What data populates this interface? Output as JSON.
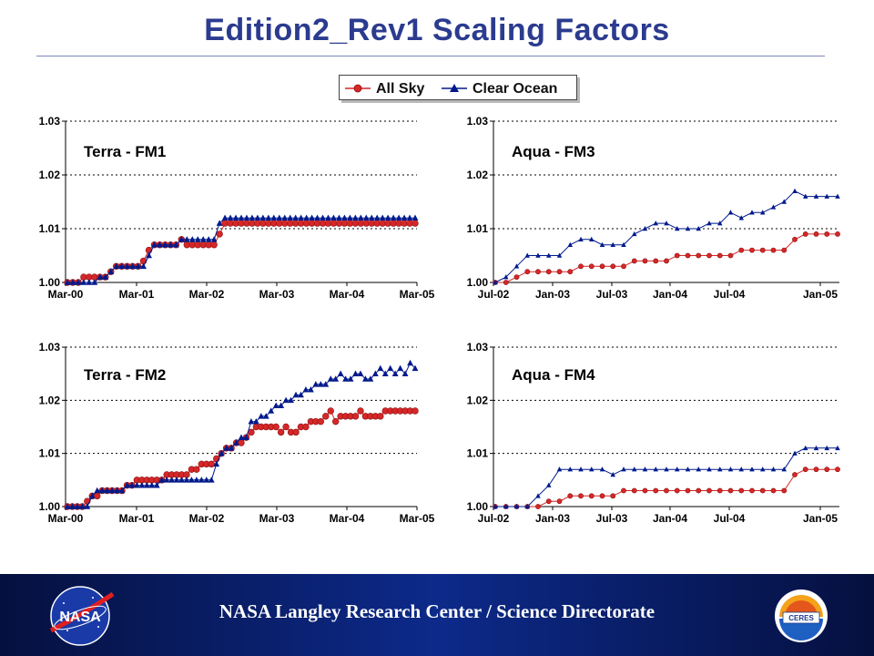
{
  "title": "Edition2_Rev1 Scaling Factors",
  "footer": {
    "text": "NASA Langley Research Center / Science Directorate",
    "nasa_logo_text": "NASA",
    "ceres_logo_text": "CERES"
  },
  "legend": {
    "series": [
      {
        "name": "All Sky",
        "color": "#d62728",
        "marker": "circle"
      },
      {
        "name": "Clear Ocean",
        "color": "#001a8c",
        "marker": "triangle"
      }
    ]
  },
  "chart_data": [
    {
      "type": "line",
      "label": "Terra - FM1",
      "x_labels": [
        "Mar-00",
        "Mar-01",
        "Mar-02",
        "Mar-03",
        "Mar-04",
        "Mar-05"
      ],
      "ylim": [
        1.0,
        1.03
      ],
      "y_ticks": [
        "1.00",
        "1.01",
        "1.02",
        "1.03"
      ],
      "grid": "horizontal dotted",
      "series": [
        {
          "name": "All Sky",
          "values": [
            1.0,
            1.0,
            1.0,
            1.001,
            1.001,
            1.001,
            1.001,
            1.001,
            1.002,
            1.003,
            1.003,
            1.003,
            1.003,
            1.003,
            1.004,
            1.006,
            1.007,
            1.007,
            1.007,
            1.007,
            1.007,
            1.008,
            1.007,
            1.007,
            1.007,
            1.007,
            1.007,
            1.007,
            1.009,
            1.011,
            1.011,
            1.011,
            1.011,
            1.011,
            1.011,
            1.011,
            1.011,
            1.011,
            1.011,
            1.011,
            1.011,
            1.011,
            1.011,
            1.011,
            1.011,
            1.011,
            1.011,
            1.011,
            1.011,
            1.011,
            1.011,
            1.011,
            1.011,
            1.011,
            1.011,
            1.011,
            1.011,
            1.011,
            1.011,
            1.011,
            1.011,
            1.011,
            1.011,
            1.011,
            1.011
          ]
        },
        {
          "name": "Clear Ocean",
          "values": [
            1.0,
            1.0,
            1.0,
            1.0,
            1.0,
            1.0,
            1.001,
            1.001,
            1.002,
            1.003,
            1.003,
            1.003,
            1.003,
            1.003,
            1.003,
            1.005,
            1.007,
            1.007,
            1.007,
            1.007,
            1.007,
            1.008,
            1.008,
            1.008,
            1.008,
            1.008,
            1.008,
            1.008,
            1.011,
            1.012,
            1.012,
            1.012,
            1.012,
            1.012,
            1.012,
            1.012,
            1.012,
            1.012,
            1.012,
            1.012,
            1.012,
            1.012,
            1.012,
            1.012,
            1.012,
            1.012,
            1.012,
            1.012,
            1.012,
            1.012,
            1.012,
            1.012,
            1.012,
            1.012,
            1.012,
            1.012,
            1.012,
            1.012,
            1.012,
            1.012,
            1.012,
            1.012,
            1.012,
            1.012,
            1.012
          ]
        }
      ]
    },
    {
      "type": "line",
      "label": "Aqua - FM3",
      "x_labels": [
        "Jul-02",
        "Jan-03",
        "Jul-03",
        "Jan-04",
        "Jul-04",
        "Jan-05"
      ],
      "ylim": [
        1.0,
        1.03
      ],
      "y_ticks": [
        "1.00",
        "1.01",
        "1.02",
        "1.03"
      ],
      "grid": "horizontal dotted",
      "series": [
        {
          "name": "All Sky",
          "values": [
            1.0,
            1.0,
            1.001,
            1.002,
            1.002,
            1.002,
            1.002,
            1.002,
            1.003,
            1.003,
            1.003,
            1.003,
            1.003,
            1.004,
            1.004,
            1.004,
            1.004,
            1.005,
            1.005,
            1.005,
            1.005,
            1.005,
            1.005,
            1.006,
            1.006,
            1.006,
            1.006,
            1.006,
            1.008,
            1.009,
            1.009,
            1.009,
            1.009
          ]
        },
        {
          "name": "Clear Ocean",
          "values": [
            1.0,
            1.001,
            1.003,
            1.005,
            1.005,
            1.005,
            1.005,
            1.007,
            1.008,
            1.008,
            1.007,
            1.007,
            1.007,
            1.009,
            1.01,
            1.011,
            1.011,
            1.01,
            1.01,
            1.01,
            1.011,
            1.011,
            1.013,
            1.012,
            1.013,
            1.013,
            1.014,
            1.015,
            1.017,
            1.016,
            1.016,
            1.016,
            1.016
          ]
        }
      ]
    },
    {
      "type": "line",
      "label": "Terra - FM2",
      "x_labels": [
        "Mar-00",
        "Mar-01",
        "Mar-02",
        "Mar-03",
        "Mar-04",
        "Mar-05"
      ],
      "ylim": [
        1.0,
        1.03
      ],
      "y_ticks": [
        "1.00",
        "1.01",
        "1.02",
        "1.03"
      ],
      "grid": "horizontal dotted",
      "series": [
        {
          "name": "All Sky",
          "values": [
            1.0,
            1.0,
            1.0,
            1.0,
            1.001,
            1.002,
            1.002,
            1.003,
            1.003,
            1.003,
            1.003,
            1.003,
            1.004,
            1.004,
            1.005,
            1.005,
            1.005,
            1.005,
            1.005,
            1.005,
            1.006,
            1.006,
            1.006,
            1.006,
            1.006,
            1.007,
            1.007,
            1.008,
            1.008,
            1.008,
            1.009,
            1.01,
            1.011,
            1.011,
            1.012,
            1.012,
            1.013,
            1.014,
            1.015,
            1.015,
            1.015,
            1.015,
            1.015,
            1.014,
            1.015,
            1.014,
            1.014,
            1.015,
            1.015,
            1.016,
            1.016,
            1.016,
            1.017,
            1.018,
            1.016,
            1.017,
            1.017,
            1.017,
            1.017,
            1.018,
            1.017,
            1.017,
            1.017,
            1.017,
            1.018,
            1.018,
            1.018,
            1.018,
            1.018,
            1.018,
            1.018
          ]
        },
        {
          "name": "Clear Ocean",
          "values": [
            1.0,
            1.0,
            1.0,
            1.0,
            1.0,
            1.002,
            1.003,
            1.003,
            1.003,
            1.003,
            1.003,
            1.003,
            1.004,
            1.004,
            1.004,
            1.004,
            1.004,
            1.004,
            1.004,
            1.005,
            1.005,
            1.005,
            1.005,
            1.005,
            1.005,
            1.005,
            1.005,
            1.005,
            1.005,
            1.005,
            1.008,
            1.01,
            1.011,
            1.011,
            1.012,
            1.013,
            1.013,
            1.016,
            1.016,
            1.017,
            1.017,
            1.018,
            1.019,
            1.019,
            1.02,
            1.02,
            1.021,
            1.021,
            1.022,
            1.022,
            1.023,
            1.023,
            1.023,
            1.024,
            1.024,
            1.025,
            1.024,
            1.024,
            1.025,
            1.025,
            1.024,
            1.024,
            1.025,
            1.026,
            1.025,
            1.026,
            1.025,
            1.026,
            1.025,
            1.027,
            1.026
          ]
        }
      ]
    },
    {
      "type": "line",
      "label": "Aqua - FM4",
      "x_labels": [
        "Jul-02",
        "Jan-03",
        "Jul-03",
        "Jan-04",
        "Jul-04",
        "Jan-05"
      ],
      "ylim": [
        1.0,
        1.03
      ],
      "y_ticks": [
        "1.00",
        "1.01",
        "1.02",
        "1.03"
      ],
      "grid": "horizontal dotted",
      "series": [
        {
          "name": "All Sky",
          "values": [
            1.0,
            1.0,
            1.0,
            1.0,
            1.0,
            1.001,
            1.001,
            1.002,
            1.002,
            1.002,
            1.002,
            1.002,
            1.003,
            1.003,
            1.003,
            1.003,
            1.003,
            1.003,
            1.003,
            1.003,
            1.003,
            1.003,
            1.003,
            1.003,
            1.003,
            1.003,
            1.003,
            1.003,
            1.006,
            1.007,
            1.007,
            1.007,
            1.007
          ]
        },
        {
          "name": "Clear Ocean",
          "values": [
            1.0,
            1.0,
            1.0,
            1.0,
            1.002,
            1.004,
            1.007,
            1.007,
            1.007,
            1.007,
            1.007,
            1.006,
            1.007,
            1.007,
            1.007,
            1.007,
            1.007,
            1.007,
            1.007,
            1.007,
            1.007,
            1.007,
            1.007,
            1.007,
            1.007,
            1.007,
            1.007,
            1.007,
            1.01,
            1.011,
            1.011,
            1.011,
            1.011
          ]
        }
      ]
    }
  ]
}
